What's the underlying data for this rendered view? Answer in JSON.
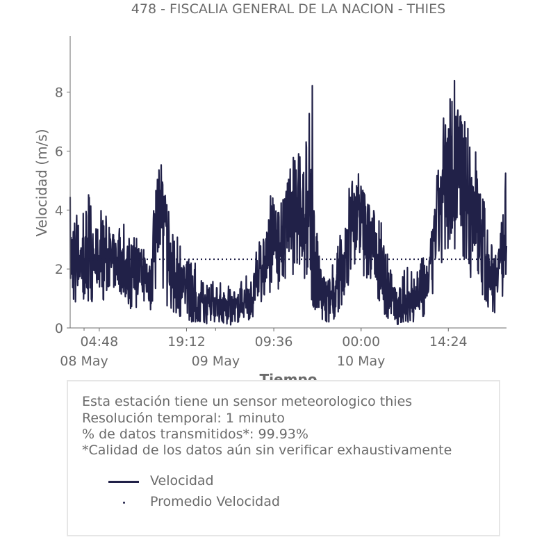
{
  "chart_data": {
    "type": "line",
    "title": "478 - FISCALIA GENERAL DE LA NACION - THIES",
    "xlabel": "Tiempo",
    "ylabel": "Velocidad (m/s)",
    "ylim": [
      0,
      9.9
    ],
    "yticks": [
      "0",
      "2",
      "4",
      "6",
      "8"
    ],
    "xticks": [
      "04:48",
      "19:12",
      "09:36",
      "00:00",
      "14:24"
    ],
    "xdates": [
      "08 May",
      "09 May",
      "10 May"
    ],
    "x_range_hours": [
      0,
      72
    ],
    "series": [
      {
        "name": "Velocidad",
        "color": "#212148",
        "x_hours": [
          0,
          1,
          2,
          3,
          4,
          5,
          6,
          7,
          8,
          9,
          10,
          11,
          12,
          13,
          14,
          15,
          16,
          17,
          18,
          19,
          20,
          21,
          22,
          23,
          24,
          25,
          26,
          27,
          28,
          29,
          30,
          31,
          32,
          33,
          34,
          35,
          36,
          37,
          38,
          39,
          40,
          41,
          42,
          43,
          44,
          45,
          46,
          47,
          48,
          49,
          50,
          51,
          52,
          53,
          54,
          55,
          56,
          57,
          58,
          59,
          60,
          61,
          62,
          63,
          64,
          65,
          66,
          67,
          68,
          69,
          70,
          71,
          72
        ],
        "mean": [
          2.4,
          2.6,
          2.2,
          2.0,
          2.2,
          2.5,
          2.4,
          2.2,
          2.3,
          2.0,
          1.9,
          2.0,
          1.8,
          1.6,
          3.5,
          4.3,
          2.9,
          2.0,
          1.5,
          1.3,
          1.1,
          0.9,
          0.8,
          0.7,
          0.9,
          0.8,
          0.7,
          0.6,
          0.8,
          0.9,
          1.1,
          1.6,
          2.3,
          2.7,
          2.9,
          3.2,
          3.8,
          4.3,
          4.1,
          3.6,
          2.6,
          1.4,
          1.1,
          1.0,
          1.3,
          2.0,
          3.1,
          3.6,
          3.8,
          3.4,
          2.9,
          2.4,
          1.6,
          1.0,
          0.7,
          0.9,
          1.0,
          0.9,
          1.2,
          1.6,
          2.8,
          4.2,
          5.3,
          5.0,
          5.6,
          4.9,
          4.3,
          3.8,
          3.1,
          2.2,
          1.8,
          2.4,
          3.4
        ],
        "max": [
          4.5,
          4.3,
          4.2,
          4.6,
          3.8,
          4.1,
          4.3,
          3.6,
          3.9,
          3.7,
          3.3,
          3.1,
          3.0,
          3.0,
          4.9,
          5.6,
          4.2,
          3.6,
          3.1,
          2.4,
          2.4,
          2.1,
          1.6,
          1.5,
          1.7,
          1.6,
          1.5,
          1.3,
          1.5,
          1.9,
          2.0,
          2.9,
          3.6,
          4.6,
          4.2,
          4.8,
          5.2,
          6.4,
          7.0,
          6.5,
          9.0,
          3.6,
          2.0,
          2.2,
          2.6,
          3.8,
          5.0,
          6.0,
          5.2,
          4.8,
          4.6,
          4.0,
          3.4,
          2.0,
          1.7,
          2.0,
          2.2,
          1.7,
          2.4,
          2.6,
          3.8,
          6.6,
          7.6,
          8.6,
          8.4,
          7.4,
          6.5,
          6.4,
          5.6,
          3.6,
          2.6,
          3.8,
          5.7
        ],
        "min": [
          0.9,
          0.8,
          1.0,
          0.8,
          0.7,
          0.9,
          1.0,
          0.8,
          0.9,
          0.7,
          0.6,
          0.7,
          0.5,
          0.4,
          1.2,
          1.5,
          0.7,
          0.5,
          0.4,
          0.3,
          0.2,
          0.2,
          0.2,
          0.1,
          0.2,
          0.2,
          0.1,
          0.1,
          0.2,
          0.2,
          0.3,
          0.6,
          0.9,
          1.1,
          1.1,
          1.4,
          1.6,
          1.8,
          1.7,
          1.5,
          0.8,
          0.3,
          0.2,
          0.2,
          0.4,
          0.8,
          1.4,
          1.6,
          1.8,
          1.5,
          1.2,
          0.9,
          0.4,
          0.2,
          0.1,
          0.2,
          0.2,
          0.2,
          0.3,
          0.5,
          1.0,
          1.6,
          2.4,
          2.1,
          2.6,
          2.2,
          1.7,
          1.4,
          1.0,
          0.7,
          0.5,
          0.8,
          1.2
        ]
      },
      {
        "name": "Promedio Velocidad",
        "color": "#212148",
        "style": "dotted",
        "value": 2.33
      }
    ]
  },
  "info": {
    "line1": "Esta estación tiene un sensor meteorologico thies",
    "line2": "Resolución temporal: 1 minuto",
    "line3": "% de datos transmitidos*: 99.93%",
    "line4": "*Calidad de los datos aún sin verificar exhaustivamente"
  },
  "legend": {
    "item1": "Velocidad",
    "item2": "Promedio Velocidad"
  }
}
